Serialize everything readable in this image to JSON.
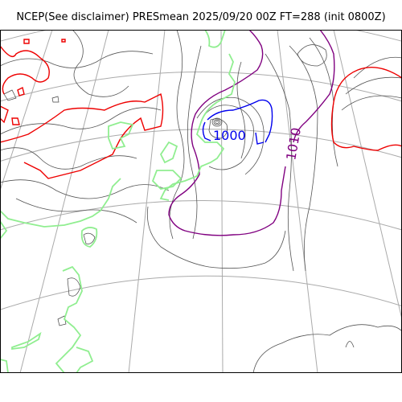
{
  "title": "NCEP(See disclaimer) PRESmean 2025/09/20 00Z FT=288 (init 0800Z)",
  "contour_labels": {
    "low": "1000",
    "mid": "1010"
  },
  "colors": {
    "frame": "#000000",
    "graticule": "#aaaaaa",
    "coastline": "#444444",
    "contour_1000": "#0000ee",
    "contour_1010": "#800080",
    "contour_1020": "#ee0000",
    "precip_outline": "#90ee90",
    "background": "#ffffff"
  }
}
